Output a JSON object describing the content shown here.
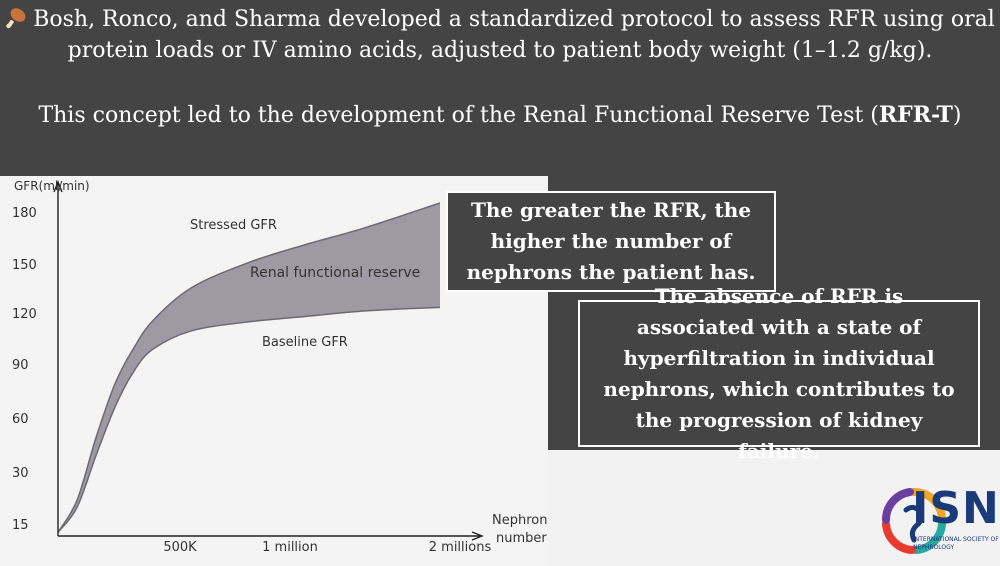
{
  "headline_1": "Bosh, Ronco, and Sharma developed a standardized protocol to assess RFR using oral protein loads or IV amino acids, adjusted to patient body weight (1–1.2 g/kg).",
  "headline_2_prefix": "This concept led to the development of the Renal Functional Reserve Test (",
  "headline_2_bold": "RFR-T",
  "headline_2_suffix": ")",
  "callout_1": "The greater the RFR, the higher the number of nephrons the patient has.",
  "callout_2": "The absence of RFR is associated with a state of hyperfiltration in individual nephrons, which contributes to the progression of kidney failure.",
  "logo": {
    "name": "ISN",
    "subtitle": "INTERNATIONAL SOCIETY OF NEPHROLOGY"
  },
  "icons": {
    "bullet": "drumstick-icon"
  },
  "colors": {
    "dark_bg": "#444444",
    "band_fill": "#9e9aa4",
    "logo_blue": "#1b3a7a"
  },
  "chart_data": {
    "type": "area",
    "ylabel": "GFR(ml/min)",
    "xlabel": "Nephron number",
    "yticks": [
      15,
      30,
      60,
      90,
      120,
      150,
      180
    ],
    "xticks": [
      {
        "label": "500K",
        "value": 500000
      },
      {
        "label": "1 million",
        "value": 1000000
      },
      {
        "label": "2 millions",
        "value": 2000000
      }
    ],
    "xlim": [
      0,
      2000000
    ],
    "ylim": [
      0,
      190
    ],
    "annotations": [
      "Stressed GFR",
      "Renal functional reserve",
      "Baseline GFR"
    ],
    "series": [
      {
        "name": "Stressed GFR",
        "x": [
          0,
          100000,
          200000,
          300000,
          400000,
          500000,
          700000,
          1000000,
          1300000,
          1600000,
          2000000
        ],
        "y": [
          2,
          20,
          55,
          85,
          105,
          120,
          138,
          152,
          162,
          171,
          185
        ]
      },
      {
        "name": "Baseline GFR",
        "x": [
          0,
          100000,
          200000,
          300000,
          400000,
          500000,
          700000,
          1000000,
          1300000,
          1600000,
          2000000
        ],
        "y": [
          2,
          16,
          45,
          72,
          92,
          104,
          114,
          119,
          122,
          125,
          127
        ]
      }
    ]
  }
}
